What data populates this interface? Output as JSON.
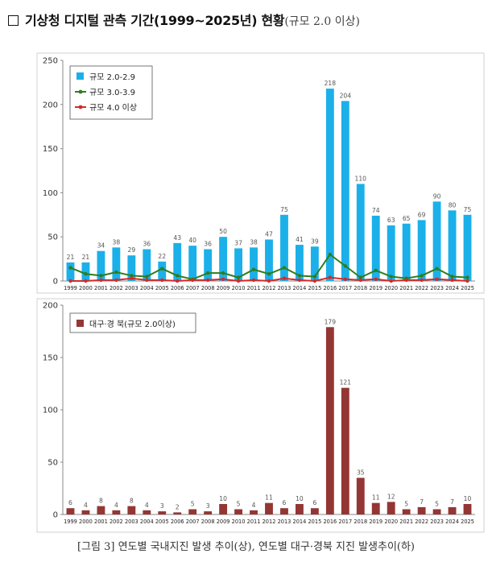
{
  "page": {
    "title_main": "기상청 디지털 관측 기간(1999~2025년) 현황",
    "title_sub": "(규모 2.0 이상)",
    "caption": "[그림 3] 연도별 국내지진 발생 추이(상), 연도별 대구·경북 지진 발생추이(하)"
  },
  "chart_data": [
    {
      "type": "bar",
      "categories": [
        "1999",
        "2000",
        "2001",
        "2002",
        "2003",
        "2004",
        "2005",
        "2006",
        "2007",
        "2008",
        "2009",
        "2010",
        "2011",
        "2012",
        "2013",
        "2014",
        "2015",
        "2016",
        "2017",
        "2018",
        "2019",
        "2020",
        "2021",
        "2022",
        "2023",
        "2024",
        "2025"
      ],
      "series": [
        {
          "name": "규모 2.0-2.9",
          "kind": "bar",
          "color": "#1BB0E9",
          "values": [
            21,
            21,
            34,
            38,
            29,
            36,
            22,
            43,
            40,
            36,
            50,
            37,
            38,
            47,
            75,
            41,
            39,
            218,
            204,
            110,
            74,
            63,
            65,
            69,
            90,
            80,
            75
          ]
        },
        {
          "name": "규모 3.0-3.9",
          "kind": "line",
          "color": "#2E7D1E",
          "values": [
            15,
            8,
            6,
            10,
            6,
            5,
            14,
            6,
            2,
            9,
            9,
            4,
            13,
            8,
            15,
            6,
            5,
            30,
            17,
            4,
            12,
            5,
            3,
            6,
            14,
            5,
            4
          ]
        },
        {
          "name": "규모 4.0 이상",
          "kind": "line",
          "color": "#D42A2A",
          "values": [
            0,
            0,
            1,
            1,
            3,
            1,
            1,
            0,
            1,
            1,
            2,
            0,
            1,
            0,
            3,
            1,
            0,
            4,
            2,
            1,
            2,
            0,
            1,
            1,
            2,
            1,
            0
          ]
        }
      ],
      "ylim": [
        0,
        250
      ],
      "yticks": [
        0,
        50,
        100,
        150,
        200,
        250
      ],
      "legend_position": "top-left",
      "grid": false
    },
    {
      "type": "bar",
      "categories": [
        "1999",
        "2000",
        "2001",
        "2002",
        "2003",
        "2004",
        "2005",
        "2006",
        "2007",
        "2008",
        "2009",
        "2010",
        "2011",
        "2012",
        "2013",
        "2014",
        "2015",
        "2016",
        "2017",
        "2018",
        "2019",
        "2020",
        "2021",
        "2022",
        "2023",
        "2024",
        "2025"
      ],
      "series": [
        {
          "name": "대구·경 북(규모 2.0이상)",
          "kind": "bar",
          "color": "#943634",
          "values": [
            6,
            4,
            8,
            4,
            8,
            4,
            3,
            2,
            5,
            3,
            10,
            5,
            4,
            11,
            6,
            10,
            6,
            179,
            121,
            35,
            11,
            12,
            5,
            7,
            5,
            7,
            10
          ]
        }
      ],
      "ylim": [
        0,
        200
      ],
      "yticks": [
        0,
        50,
        100,
        150,
        200
      ],
      "legend_position": "top-left",
      "grid": false
    }
  ]
}
